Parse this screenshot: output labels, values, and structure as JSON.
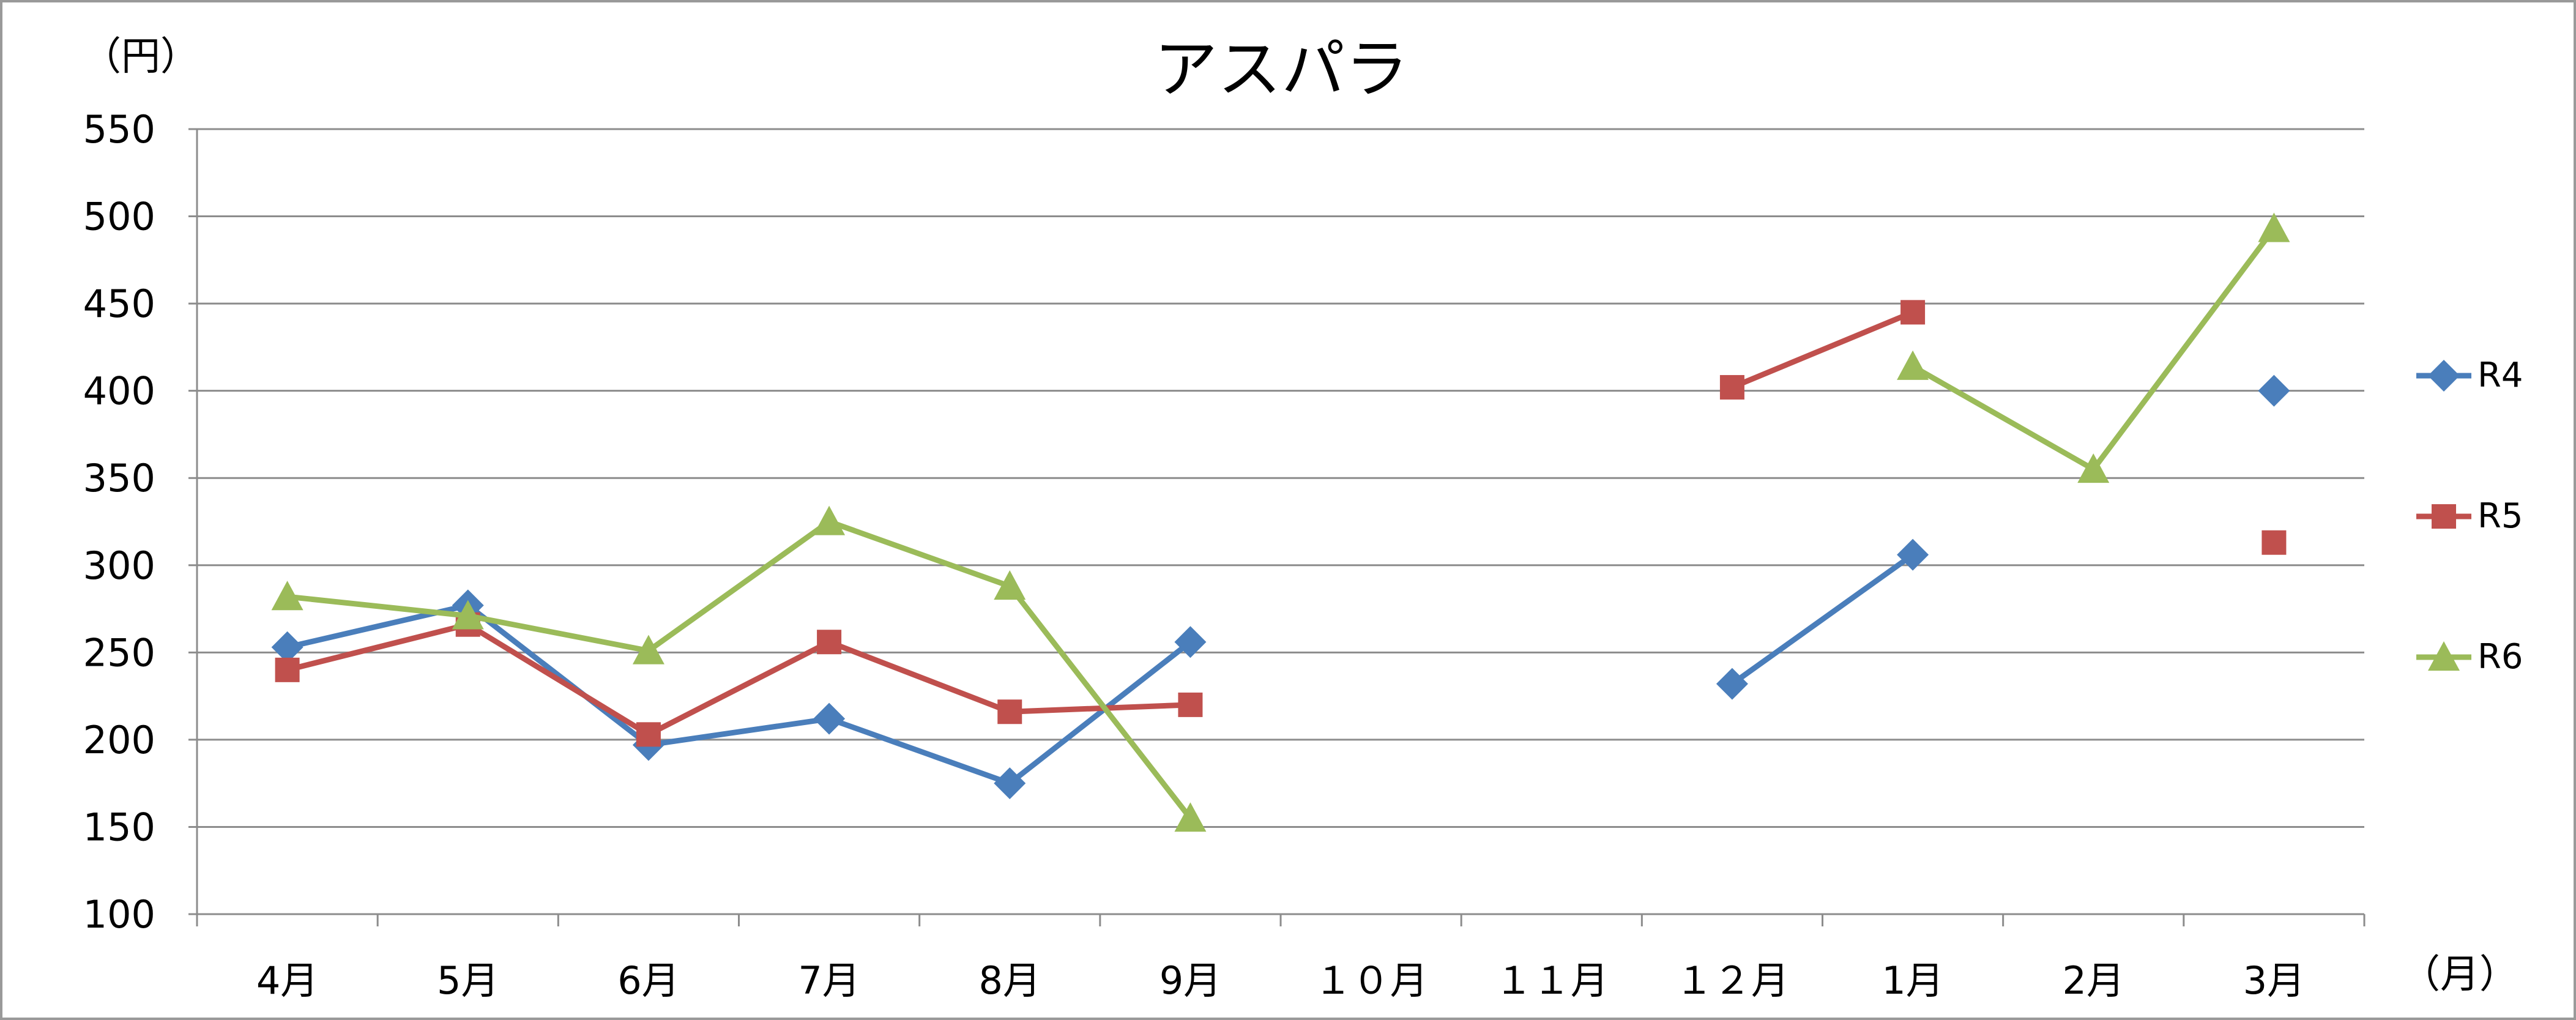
{
  "chart_data": {
    "type": "line",
    "title": "アスパラ",
    "ylabel": "（円）",
    "xlabel": "（月）",
    "categories": [
      "4月",
      "5月",
      "6月",
      "7月",
      "8月",
      "9月",
      "１０月",
      "１１月",
      "１２月",
      "1月",
      "2月",
      "3月"
    ],
    "ylim": [
      100,
      550
    ],
    "yticks": [
      100,
      150,
      200,
      250,
      300,
      350,
      400,
      450,
      500,
      550
    ],
    "grid": true,
    "legend_position": "right",
    "series": [
      {
        "name": "R4",
        "color": "#4a7ebb",
        "marker": "diamond",
        "values": [
          253,
          277,
          197,
          212,
          175,
          256,
          null,
          null,
          232,
          306,
          null,
          400
        ]
      },
      {
        "name": "R5",
        "color": "#c0504d",
        "marker": "square",
        "values": [
          240,
          266,
          203,
          256,
          216,
          220,
          null,
          null,
          402,
          445,
          null,
          313
        ]
      },
      {
        "name": "R6",
        "color": "#9bbb59",
        "marker": "triangle",
        "values": [
          282,
          271,
          251,
          325,
          288,
          155,
          null,
          null,
          null,
          414,
          355,
          493
        ]
      }
    ]
  }
}
